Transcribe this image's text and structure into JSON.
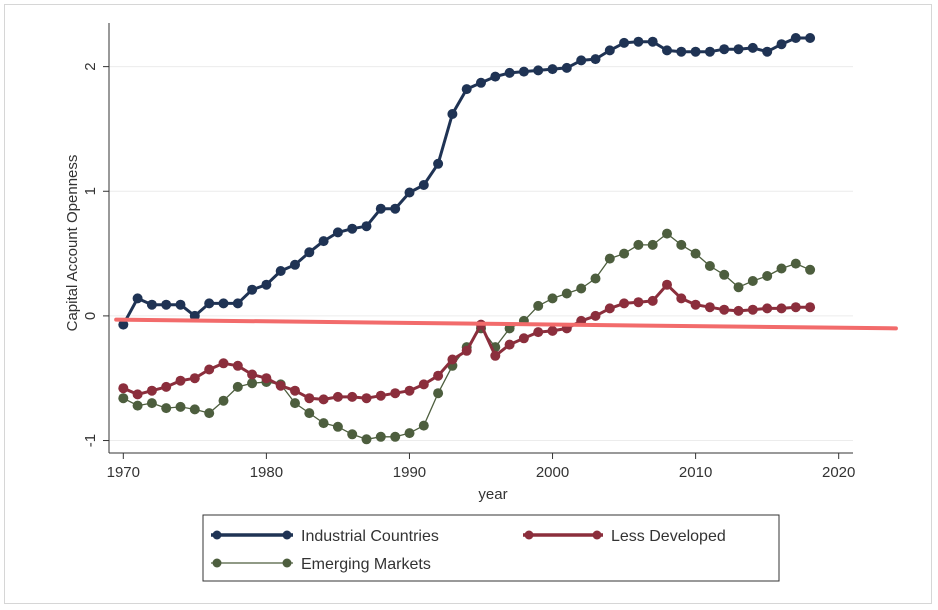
{
  "chart_data": {
    "type": "line",
    "xlabel": "year",
    "ylabel": "Capital Account Openness",
    "xlim": [
      1969,
      2021
    ],
    "ylim": [
      -1.1,
      2.35
    ],
    "xticks": [
      1970,
      1980,
      1990,
      2000,
      2010,
      2020
    ],
    "yticks": [
      -1,
      0,
      1,
      2
    ],
    "grid": "horizontal",
    "legend_position": "bottom",
    "x": [
      1970,
      1971,
      1972,
      1973,
      1974,
      1975,
      1976,
      1977,
      1978,
      1979,
      1980,
      1981,
      1982,
      1983,
      1984,
      1985,
      1986,
      1987,
      1988,
      1989,
      1990,
      1991,
      1992,
      1993,
      1994,
      1995,
      1996,
      1997,
      1998,
      1999,
      2000,
      2001,
      2002,
      2003,
      2004,
      2005,
      2006,
      2007,
      2008,
      2009,
      2010,
      2011,
      2012,
      2013,
      2014,
      2015,
      2016,
      2017,
      2018
    ],
    "series": [
      {
        "name": "Industrial Countries",
        "color": "#1f3354",
        "values": [
          -0.07,
          0.14,
          0.09,
          0.09,
          0.09,
          0.0,
          0.1,
          0.1,
          0.1,
          0.21,
          0.25,
          0.36,
          0.41,
          0.51,
          0.6,
          0.67,
          0.7,
          0.72,
          0.86,
          0.86,
          0.99,
          1.05,
          1.22,
          1.62,
          1.82,
          1.87,
          1.92,
          1.95,
          1.96,
          1.97,
          1.98,
          1.99,
          2.05,
          2.06,
          2.13,
          2.19,
          2.2,
          2.2,
          2.13,
          2.12,
          2.12,
          2.12,
          2.14,
          2.14,
          2.15,
          2.12,
          2.18,
          2.23,
          2.23
        ]
      },
      {
        "name": "Less Developed",
        "color": "#8b2e3c",
        "values": [
          -0.58,
          -0.63,
          -0.6,
          -0.57,
          -0.52,
          -0.5,
          -0.43,
          -0.38,
          -0.4,
          -0.47,
          -0.5,
          -0.56,
          -0.6,
          -0.66,
          -0.67,
          -0.65,
          -0.65,
          -0.66,
          -0.64,
          -0.62,
          -0.6,
          -0.55,
          -0.48,
          -0.35,
          -0.28,
          -0.07,
          -0.32,
          -0.23,
          -0.18,
          -0.13,
          -0.12,
          -0.1,
          -0.04,
          0.0,
          0.06,
          0.1,
          0.11,
          0.12,
          0.25,
          0.14,
          0.09,
          0.07,
          0.05,
          0.04,
          0.05,
          0.06,
          0.06,
          0.07,
          0.07
        ]
      },
      {
        "name": "Emerging Markets",
        "color": "#4d5e3e",
        "values": [
          -0.66,
          -0.72,
          -0.7,
          -0.74,
          -0.73,
          -0.75,
          -0.78,
          -0.68,
          -0.57,
          -0.54,
          -0.53,
          -0.55,
          -0.7,
          -0.78,
          -0.86,
          -0.89,
          -0.95,
          -0.99,
          -0.97,
          -0.97,
          -0.94,
          -0.88,
          -0.62,
          -0.4,
          -0.25,
          -0.1,
          -0.25,
          -0.1,
          -0.04,
          0.08,
          0.14,
          0.18,
          0.22,
          0.3,
          0.46,
          0.5,
          0.57,
          0.57,
          0.66,
          0.57,
          0.5,
          0.4,
          0.33,
          0.23,
          0.28,
          0.32,
          0.38,
          0.42,
          0.37
        ]
      }
    ],
    "annotation_line": {
      "color": "#f26b6b",
      "from": [
        1969.5,
        -0.03
      ],
      "to": [
        2024,
        -0.1
      ]
    }
  }
}
